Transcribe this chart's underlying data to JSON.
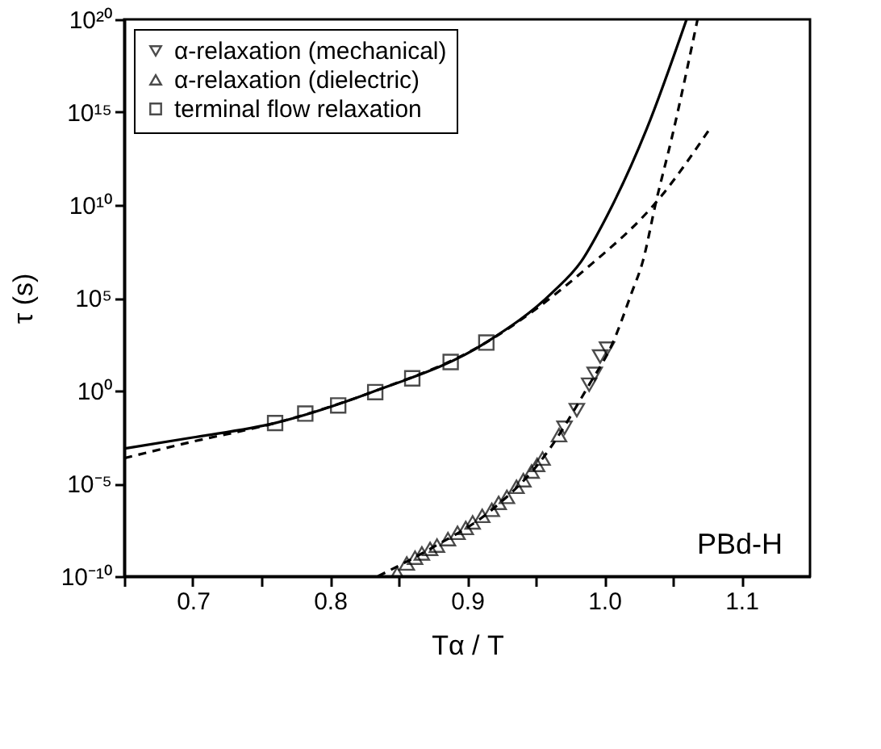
{
  "chart_data": {
    "type": "scatter",
    "xlabel": "Tα / T",
    "ylabel": "τ (s)",
    "log": "y",
    "xlim": [
      0.65,
      1.15
    ],
    "ylim": [
      1e-10,
      1e+20
    ],
    "xticks": [
      {
        "value": 0.65,
        "label": null
      },
      {
        "value": 0.7,
        "label": "0.7"
      },
      {
        "value": 0.75,
        "label": null
      },
      {
        "value": 0.8,
        "label": "0.8"
      },
      {
        "value": 0.85,
        "label": null
      },
      {
        "value": 0.9,
        "label": "0.9"
      },
      {
        "value": 0.95,
        "label": null
      },
      {
        "value": 1.0,
        "label": "1.0"
      },
      {
        "value": 1.05,
        "label": null
      },
      {
        "value": 1.1,
        "label": "1.1"
      }
    ],
    "yticks": [
      {
        "value": 1e-10,
        "label": "10⁻¹⁰"
      },
      {
        "value": 1e-05,
        "label": "10⁻⁵"
      },
      {
        "value": 1,
        "label": "10⁰"
      },
      {
        "value": 100000.0,
        "label": "10⁵"
      },
      {
        "value": 10000000000.0,
        "label": "10¹⁰"
      },
      {
        "value": 1000000000000000.0,
        "label": "10¹⁵"
      },
      {
        "value": 1e+20,
        "label": "10²⁰"
      }
    ],
    "grid": false,
    "legend": "top left",
    "annotations": [
      "PBd-H"
    ],
    "series": [
      {
        "name": "α-relaxation (mechanical)",
        "type": "scatter",
        "marker": "triangle-down",
        "color": "#000000",
        "x": [
          0.971,
          0.98,
          0.989,
          0.993,
          0.997,
          1.002
        ],
        "values": [
          0.01,
          0.089,
          2.1,
          8,
          69,
          182
        ]
      },
      {
        "name": "α-relaxation (dielectric)",
        "type": "scatter",
        "marker": "triangle",
        "color": "#000000",
        "x": [
          0.849,
          0.856,
          0.862,
          0.867,
          0.873,
          0.878,
          0.886,
          0.893,
          0.899,
          0.904,
          0.911,
          0.918,
          0.923,
          0.929,
          0.936,
          0.941,
          0.947,
          0.951,
          0.955,
          0.967
        ],
        "values": [
          1.4e-10,
          4.9e-10,
          1e-09,
          1.7e-09,
          3e-09,
          4.5e-09,
          1e-08,
          2.2e-08,
          4e-08,
          8e-08,
          1.8e-07,
          3.8e-07,
          9e-07,
          1.9e-06,
          6.6e-06,
          1.5e-05,
          4.4e-05,
          0.0001,
          0.00022,
          0.004
        ]
      },
      {
        "name": "terminal flow relaxation",
        "type": "scatter",
        "marker": "square",
        "color": "#000000",
        "x": [
          0.76,
          0.782,
          0.806,
          0.833,
          0.86,
          0.888,
          0.914
        ],
        "values": [
          0.018,
          0.058,
          0.16,
          0.83,
          4.6,
          35,
          390
        ]
      },
      {
        "type": "line",
        "line_style": "solid",
        "color": "#000000",
        "x": [
          0.65,
          0.7,
          0.76,
          0.83,
          0.914,
          0.962,
          0.983,
          1.002,
          1.031,
          1.06
        ],
        "values": [
          0.00076,
          0.003,
          0.018,
          0.8,
          400,
          190000.0,
          8700000.0,
          2600000000.0,
          130000000000000.0,
          1e+20
        ]
      },
      {
        "type": "line",
        "line_style": "dashed",
        "color": "#000000",
        "x": [
          0.65,
          0.7,
          0.76,
          0.83,
          0.914,
          0.984,
          1.042,
          1.077
        ],
        "values": [
          0.00023,
          0.0018,
          0.018,
          0.8,
          400,
          2500000.0,
          33000000000.0,
          130000000000000.0
        ]
      },
      {
        "type": "line",
        "line_style": "dashed",
        "color": "#000000",
        "x": [
          0.835,
          0.873,
          0.918,
          0.955,
          0.989,
          1.006,
          1.02,
          1.028,
          1.038,
          1.049,
          1.068
        ],
        "values": [
          1e-10,
          3e-09,
          3.8e-07,
          0.00022,
          2.1,
          350,
          190000.0,
          8700000.0,
          18000000000.0,
          35000000000000.0,
          1e+20
        ]
      }
    ]
  }
}
